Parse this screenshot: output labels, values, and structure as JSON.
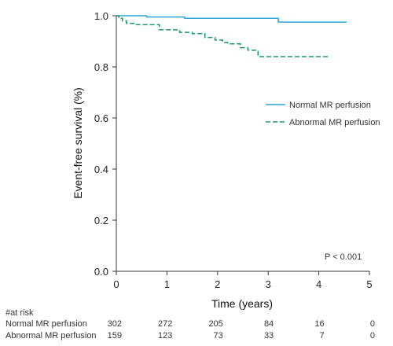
{
  "chart_data": {
    "type": "line",
    "xlabel": "Time (years)",
    "ylabel": "Event-free survival (%)",
    "xlim": [
      0,
      5
    ],
    "ylim": [
      0,
      1.0
    ],
    "x_ticks": [
      0,
      1,
      2,
      3,
      4,
      5
    ],
    "y_ticks": [
      0.0,
      0.2,
      0.4,
      0.6,
      0.8,
      1.0
    ],
    "x_tick_labels": [
      "0",
      "1",
      "2",
      "3",
      "4",
      "5"
    ],
    "y_tick_labels": [
      "0.0",
      "0.2",
      "0.4",
      "0.6",
      "0.8",
      "1.0"
    ],
    "grid": false,
    "legend_position": "right-middle",
    "annotation": "P < 0.001",
    "series": [
      {
        "name": "Normal MR perfusion",
        "color": "#2aa7d8",
        "style": "solid",
        "steps": [
          [
            0,
            1.0
          ],
          [
            0.6,
            0.995
          ],
          [
            1.35,
            0.99
          ],
          [
            3.2,
            0.975
          ],
          [
            4.55,
            0.975
          ]
        ]
      },
      {
        "name": "Abnormal MR perfusion",
        "color": "#1a9a70",
        "style": "dashed",
        "steps": [
          [
            0,
            1.0
          ],
          [
            0.05,
            0.99
          ],
          [
            0.12,
            0.98
          ],
          [
            0.2,
            0.97
          ],
          [
            0.35,
            0.965
          ],
          [
            0.85,
            0.945
          ],
          [
            1.25,
            0.935
          ],
          [
            1.5,
            0.93
          ],
          [
            1.75,
            0.915
          ],
          [
            1.95,
            0.905
          ],
          [
            2.1,
            0.895
          ],
          [
            2.2,
            0.89
          ],
          [
            2.45,
            0.875
          ],
          [
            2.6,
            0.865
          ],
          [
            2.8,
            0.84
          ],
          [
            4.2,
            0.84
          ]
        ]
      }
    ],
    "risk_table": {
      "header": "#at risk",
      "rows": [
        {
          "label": "Normal MR perfusion",
          "values": [
            "302",
            "272",
            "205",
            "84",
            "16",
            "0"
          ]
        },
        {
          "label": "Abnormal MR perfusion",
          "values": [
            "159",
            "123",
            "73",
            "33",
            "7",
            "0"
          ]
        }
      ]
    }
  }
}
